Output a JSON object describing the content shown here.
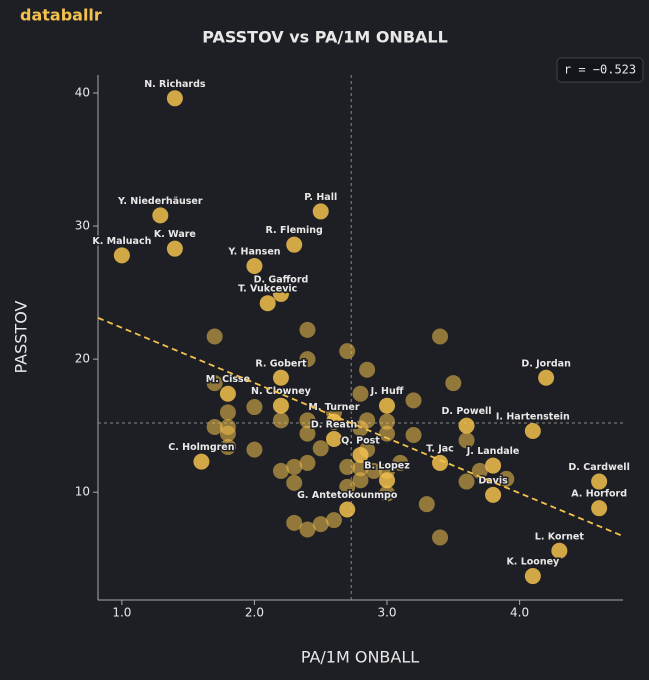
{
  "brand": "databallr",
  "chart_data": {
    "type": "scatter",
    "title": "PASSTOV vs PA/1M ONBALL",
    "x_label": "PA/1M ONBALL",
    "y_label": "PASSTOV",
    "annotation": "r = −0.523",
    "xlim": [
      0.82,
      4.78
    ],
    "ylim": [
      1.9,
      41.35
    ],
    "xticks": [
      {
        "value": 1,
        "label": "1.0"
      },
      {
        "value": 2,
        "label": "2.0"
      },
      {
        "value": 3,
        "label": "3.0"
      },
      {
        "value": 4,
        "label": "4.0"
      }
    ],
    "yticks": [
      10,
      20,
      30,
      40
    ],
    "ref_x": 2.73,
    "ref_y": 15.2,
    "trendline": {
      "x": [
        0.82,
        4.78
      ],
      "y": [
        23.1,
        6.7
      ]
    },
    "series": [
      {
        "color": "#f2c14e",
        "x": [
          1.4,
          1.29,
          1.4,
          1.0,
          2.5,
          2.3,
          2.0,
          2.2,
          2.1,
          2.2,
          1.8,
          2.2,
          2.6,
          2.6,
          2.8,
          3.0,
          3.0,
          1.6,
          3.6,
          4.2,
          4.1,
          3.8,
          4.6,
          4.6,
          3.4,
          3.8,
          2.7,
          4.3,
          4.1,
          1.7,
          2.4,
          3.4,
          2.7,
          2.4,
          2.85,
          3.5,
          1.7,
          2.8,
          3.2,
          1.8,
          2.0,
          2.6,
          2.2,
          2.4,
          2.85,
          3.0,
          1.7,
          1.8,
          2.8,
          2.4,
          1.8,
          3.0,
          3.2,
          3.6,
          1.8,
          2.0,
          2.5,
          2.85,
          2.7,
          2.2,
          2.3,
          2.4,
          2.8,
          3.0,
          3.1,
          2.9,
          2.8,
          2.7,
          2.3,
          3.0,
          3.3,
          3.6,
          3.7,
          3.9,
          2.3,
          2.4,
          2.5,
          2.6,
          3.4
        ],
        "y": [
          39.6,
          30.8,
          28.3,
          27.8,
          31.1,
          28.6,
          27.0,
          24.9,
          24.2,
          18.6,
          17.4,
          16.5,
          15.3,
          14.0,
          12.8,
          16.5,
          10.9,
          12.3,
          15.0,
          18.6,
          14.6,
          12.0,
          10.8,
          8.8,
          12.2,
          9.8,
          8.7,
          5.6,
          3.7,
          21.7,
          22.2,
          21.7,
          20.6,
          20.0,
          19.2,
          18.2,
          18.2,
          17.4,
          16.9,
          16.0,
          16.4,
          16.0,
          15.4,
          15.4,
          15.4,
          15.3,
          14.9,
          14.9,
          14.8,
          14.4,
          14.4,
          14.4,
          14.3,
          13.9,
          13.4,
          13.2,
          13.3,
          13.2,
          11.9,
          11.6,
          11.9,
          12.2,
          11.8,
          11.6,
          12.2,
          11.6,
          10.9,
          10.4,
          10.7,
          9.9,
          9.1,
          10.8,
          11.6,
          11.0,
          7.7,
          7.2,
          7.6,
          7.9,
          6.6
        ],
        "labels": [
          "N. Richards",
          "Y. Niederhäuser",
          "K. Ware",
          "K. Maluach",
          "P. Hall",
          "R. Fleming",
          "Y. Hansen",
          "D. Gafford",
          "T. Vukcevic",
          "R. Gobert",
          "M. Cisse",
          "N. Clowney",
          "M. Turner",
          "D. Reath",
          "Q. Post",
          "J. Huff",
          "B. Lopez",
          "C. Holmgren",
          "D. Powell",
          "D. Jordan",
          "I. Hartenstein",
          "J. Landale",
          "D. Cardwell",
          "A. Horford",
          "T. Jac",
          "Davis",
          "G. Antetokounmpo",
          "L. Kornet",
          "K. Looney",
          null,
          null,
          null,
          null,
          null,
          null,
          null,
          null,
          null,
          null,
          null,
          null,
          null,
          null,
          null,
          null,
          null,
          null,
          null,
          null,
          null,
          null,
          null,
          null,
          null,
          null,
          null,
          null,
          null,
          null,
          null,
          null,
          null,
          null,
          null,
          null,
          null,
          null,
          null,
          null,
          null,
          null,
          null,
          null,
          null,
          null,
          null,
          null,
          null,
          null
        ]
      }
    ]
  }
}
